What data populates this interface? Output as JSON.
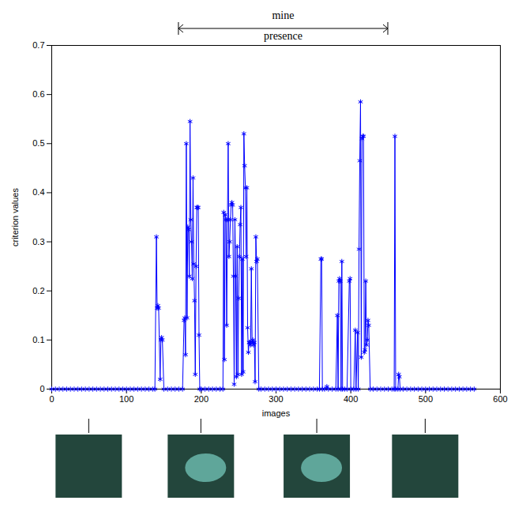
{
  "chart_data": {
    "type": "line",
    "xlabel": "images",
    "ylabel": "criterion values",
    "color": "#0000ff",
    "marker": "asterisk",
    "line_style": "solid",
    "xlim": [
      0,
      600
    ],
    "xticks": [
      0,
      100,
      200,
      300,
      400,
      500,
      600
    ],
    "ylim": [
      0,
      0.7
    ],
    "yticks": [
      0,
      0.1,
      0.2,
      0.3,
      0.4,
      0.5,
      0.6,
      0.7
    ],
    "grid": false,
    "bracket_text": [
      "mine",
      "presence"
    ],
    "bracket": [
      170,
      450
    ],
    "thumbnails_at": [
      50,
      200,
      355,
      500
    ],
    "x": [
      0,
      5,
      10,
      15,
      20,
      25,
      30,
      35,
      40,
      45,
      50,
      55,
      60,
      65,
      70,
      75,
      80,
      85,
      90,
      95,
      100,
      105,
      110,
      115,
      120,
      125,
      130,
      135,
      138,
      140,
      141,
      142,
      143,
      145,
      146,
      147,
      148,
      150,
      155,
      160,
      165,
      170,
      175,
      177,
      178,
      179,
      180,
      181,
      182,
      183,
      184,
      185,
      186,
      187,
      188,
      189,
      190,
      191,
      192,
      193,
      194,
      195,
      196,
      197,
      198,
      200,
      205,
      210,
      215,
      220,
      225,
      229,
      230,
      231,
      232,
      233,
      234,
      235,
      236,
      237,
      238,
      239,
      240,
      241,
      242,
      243,
      244,
      245,
      246,
      247,
      248,
      249,
      250,
      251,
      252,
      253,
      254,
      255,
      256,
      257,
      258,
      259,
      260,
      261,
      262,
      263,
      264,
      265,
      266,
      267,
      268,
      269,
      270,
      271,
      272,
      273,
      274,
      275,
      277,
      280,
      285,
      290,
      295,
      300,
      305,
      310,
      315,
      320,
      325,
      330,
      335,
      340,
      345,
      350,
      355,
      358,
      360,
      361,
      362,
      365,
      368,
      370,
      375,
      380,
      382,
      383,
      384,
      385,
      386,
      387,
      388,
      389,
      392,
      395,
      398,
      399,
      400,
      404,
      406,
      407,
      409,
      410,
      411,
      412,
      413,
      414,
      415,
      416,
      417,
      418,
      419,
      420,
      421,
      422,
      423,
      424,
      426,
      430,
      435,
      440,
      445,
      450,
      455,
      458,
      459,
      460,
      463,
      464,
      465,
      466,
      470,
      475,
      480,
      485,
      490,
      495,
      500,
      505,
      510,
      515,
      520,
      525,
      530,
      535,
      540,
      545,
      550,
      555,
      560,
      565
    ],
    "values": [
      0,
      0,
      0,
      0,
      0,
      0,
      0,
      0,
      0,
      0,
      0,
      0,
      0,
      0,
      0,
      0,
      0,
      0,
      0,
      0,
      0,
      0,
      0,
      0,
      0,
      0,
      0,
      0,
      0,
      0.31,
      0.165,
      0.17,
      0.165,
      0.02,
      0.1,
      0.105,
      0.1,
      0,
      0,
      0,
      0,
      0,
      0,
      0.14,
      0.145,
      0.07,
      0.5,
      0.145,
      0.33,
      0.325,
      0.23,
      0.545,
      0.345,
      0.3,
      0.225,
      0.43,
      0.255,
      0.18,
      0.03,
      0.25,
      0.37,
      0.37,
      0.37,
      0.11,
      0,
      0,
      0,
      0,
      0,
      0,
      0,
      0,
      0.36,
      0.06,
      0.355,
      0.345,
      0.13,
      0.345,
      0.5,
      0.27,
      0.3,
      0.345,
      0.375,
      0.38,
      0.375,
      0.23,
      0.01,
      0.345,
      0.23,
      0.025,
      0.29,
      0.03,
      0.185,
      0.27,
      0.335,
      0.37,
      0.03,
      0.265,
      0.035,
      0.52,
      0.455,
      0.41,
      0.27,
      0.41,
      0.125,
      0.075,
      0.095,
      0.095,
      0.09,
      0.245,
      0.095,
      0.1,
      0.09,
      0.095,
      0.015,
      0.31,
      0.26,
      0.265,
      0,
      0,
      0,
      0,
      0,
      0,
      0,
      0,
      0,
      0,
      0,
      0,
      0,
      0,
      0,
      0,
      0,
      0,
      0.265,
      0.265,
      0,
      0,
      0.005,
      0,
      0,
      0,
      0.15,
      0,
      0.22,
      0.225,
      0.22,
      0,
      0.26,
      0,
      0,
      0,
      0.22,
      0.225,
      0,
      0,
      0.12,
      0,
      0.115,
      0,
      0.285,
      0.465,
      0.585,
      0.065,
      0.51,
      0.515,
      0.515,
      0.075,
      0.08,
      0.22,
      0.09,
      0.1,
      0.14,
      0.13,
      0,
      0,
      0,
      0,
      0,
      0,
      0,
      0,
      0.515,
      0,
      0,
      0.03,
      0.025,
      0,
      0,
      0,
      0,
      0,
      0,
      0,
      0,
      0,
      0,
      0,
      0,
      0,
      0,
      0,
      0,
      0,
      0,
      0,
      0,
      0
    ]
  }
}
